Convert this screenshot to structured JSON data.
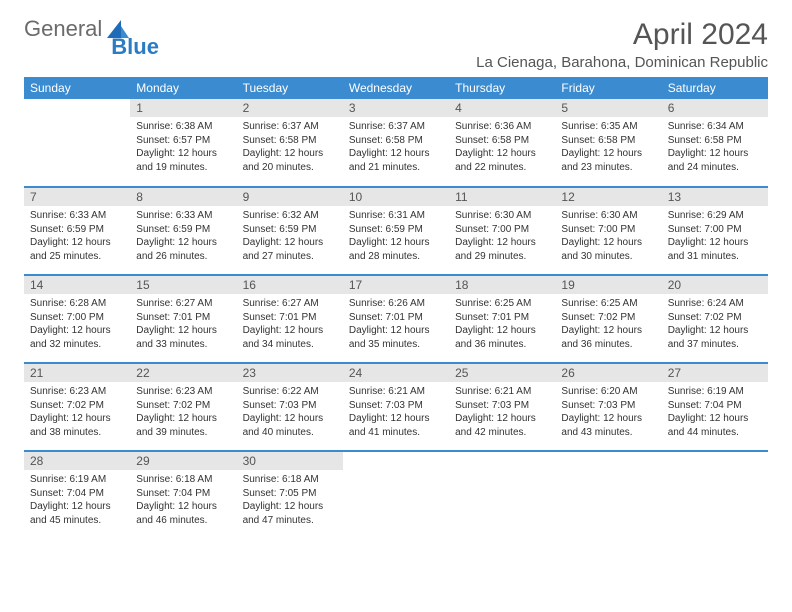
{
  "brand": {
    "text1": "General",
    "text2": "Blue"
  },
  "title": "April 2024",
  "subtitle": "La Cienaga, Barahona, Dominican Republic",
  "colors": {
    "header_bg": "#3b8bd0",
    "header_text": "#ffffff",
    "daynum_bg": "#e6e6e6",
    "row_border": "#3b8bd0",
    "title_color": "#555555",
    "logo_gray": "#6b6b6b",
    "logo_blue": "#2b7cc4"
  },
  "weekdays": [
    "Sunday",
    "Monday",
    "Tuesday",
    "Wednesday",
    "Thursday",
    "Friday",
    "Saturday"
  ],
  "weeks": [
    [
      {
        "n": "",
        "sr": "",
        "ss": "",
        "dl": ""
      },
      {
        "n": "1",
        "sr": "Sunrise: 6:38 AM",
        "ss": "Sunset: 6:57 PM",
        "dl": "Daylight: 12 hours and 19 minutes."
      },
      {
        "n": "2",
        "sr": "Sunrise: 6:37 AM",
        "ss": "Sunset: 6:58 PM",
        "dl": "Daylight: 12 hours and 20 minutes."
      },
      {
        "n": "3",
        "sr": "Sunrise: 6:37 AM",
        "ss": "Sunset: 6:58 PM",
        "dl": "Daylight: 12 hours and 21 minutes."
      },
      {
        "n": "4",
        "sr": "Sunrise: 6:36 AM",
        "ss": "Sunset: 6:58 PM",
        "dl": "Daylight: 12 hours and 22 minutes."
      },
      {
        "n": "5",
        "sr": "Sunrise: 6:35 AM",
        "ss": "Sunset: 6:58 PM",
        "dl": "Daylight: 12 hours and 23 minutes."
      },
      {
        "n": "6",
        "sr": "Sunrise: 6:34 AM",
        "ss": "Sunset: 6:58 PM",
        "dl": "Daylight: 12 hours and 24 minutes."
      }
    ],
    [
      {
        "n": "7",
        "sr": "Sunrise: 6:33 AM",
        "ss": "Sunset: 6:59 PM",
        "dl": "Daylight: 12 hours and 25 minutes."
      },
      {
        "n": "8",
        "sr": "Sunrise: 6:33 AM",
        "ss": "Sunset: 6:59 PM",
        "dl": "Daylight: 12 hours and 26 minutes."
      },
      {
        "n": "9",
        "sr": "Sunrise: 6:32 AM",
        "ss": "Sunset: 6:59 PM",
        "dl": "Daylight: 12 hours and 27 minutes."
      },
      {
        "n": "10",
        "sr": "Sunrise: 6:31 AM",
        "ss": "Sunset: 6:59 PM",
        "dl": "Daylight: 12 hours and 28 minutes."
      },
      {
        "n": "11",
        "sr": "Sunrise: 6:30 AM",
        "ss": "Sunset: 7:00 PM",
        "dl": "Daylight: 12 hours and 29 minutes."
      },
      {
        "n": "12",
        "sr": "Sunrise: 6:30 AM",
        "ss": "Sunset: 7:00 PM",
        "dl": "Daylight: 12 hours and 30 minutes."
      },
      {
        "n": "13",
        "sr": "Sunrise: 6:29 AM",
        "ss": "Sunset: 7:00 PM",
        "dl": "Daylight: 12 hours and 31 minutes."
      }
    ],
    [
      {
        "n": "14",
        "sr": "Sunrise: 6:28 AM",
        "ss": "Sunset: 7:00 PM",
        "dl": "Daylight: 12 hours and 32 minutes."
      },
      {
        "n": "15",
        "sr": "Sunrise: 6:27 AM",
        "ss": "Sunset: 7:01 PM",
        "dl": "Daylight: 12 hours and 33 minutes."
      },
      {
        "n": "16",
        "sr": "Sunrise: 6:27 AM",
        "ss": "Sunset: 7:01 PM",
        "dl": "Daylight: 12 hours and 34 minutes."
      },
      {
        "n": "17",
        "sr": "Sunrise: 6:26 AM",
        "ss": "Sunset: 7:01 PM",
        "dl": "Daylight: 12 hours and 35 minutes."
      },
      {
        "n": "18",
        "sr": "Sunrise: 6:25 AM",
        "ss": "Sunset: 7:01 PM",
        "dl": "Daylight: 12 hours and 36 minutes."
      },
      {
        "n": "19",
        "sr": "Sunrise: 6:25 AM",
        "ss": "Sunset: 7:02 PM",
        "dl": "Daylight: 12 hours and 36 minutes."
      },
      {
        "n": "20",
        "sr": "Sunrise: 6:24 AM",
        "ss": "Sunset: 7:02 PM",
        "dl": "Daylight: 12 hours and 37 minutes."
      }
    ],
    [
      {
        "n": "21",
        "sr": "Sunrise: 6:23 AM",
        "ss": "Sunset: 7:02 PM",
        "dl": "Daylight: 12 hours and 38 minutes."
      },
      {
        "n": "22",
        "sr": "Sunrise: 6:23 AM",
        "ss": "Sunset: 7:02 PM",
        "dl": "Daylight: 12 hours and 39 minutes."
      },
      {
        "n": "23",
        "sr": "Sunrise: 6:22 AM",
        "ss": "Sunset: 7:03 PM",
        "dl": "Daylight: 12 hours and 40 minutes."
      },
      {
        "n": "24",
        "sr": "Sunrise: 6:21 AM",
        "ss": "Sunset: 7:03 PM",
        "dl": "Daylight: 12 hours and 41 minutes."
      },
      {
        "n": "25",
        "sr": "Sunrise: 6:21 AM",
        "ss": "Sunset: 7:03 PM",
        "dl": "Daylight: 12 hours and 42 minutes."
      },
      {
        "n": "26",
        "sr": "Sunrise: 6:20 AM",
        "ss": "Sunset: 7:03 PM",
        "dl": "Daylight: 12 hours and 43 minutes."
      },
      {
        "n": "27",
        "sr": "Sunrise: 6:19 AM",
        "ss": "Sunset: 7:04 PM",
        "dl": "Daylight: 12 hours and 44 minutes."
      }
    ],
    [
      {
        "n": "28",
        "sr": "Sunrise: 6:19 AM",
        "ss": "Sunset: 7:04 PM",
        "dl": "Daylight: 12 hours and 45 minutes."
      },
      {
        "n": "29",
        "sr": "Sunrise: 6:18 AM",
        "ss": "Sunset: 7:04 PM",
        "dl": "Daylight: 12 hours and 46 minutes."
      },
      {
        "n": "30",
        "sr": "Sunrise: 6:18 AM",
        "ss": "Sunset: 7:05 PM",
        "dl": "Daylight: 12 hours and 47 minutes."
      },
      {
        "n": "",
        "sr": "",
        "ss": "",
        "dl": ""
      },
      {
        "n": "",
        "sr": "",
        "ss": "",
        "dl": ""
      },
      {
        "n": "",
        "sr": "",
        "ss": "",
        "dl": ""
      },
      {
        "n": "",
        "sr": "",
        "ss": "",
        "dl": ""
      }
    ]
  ]
}
